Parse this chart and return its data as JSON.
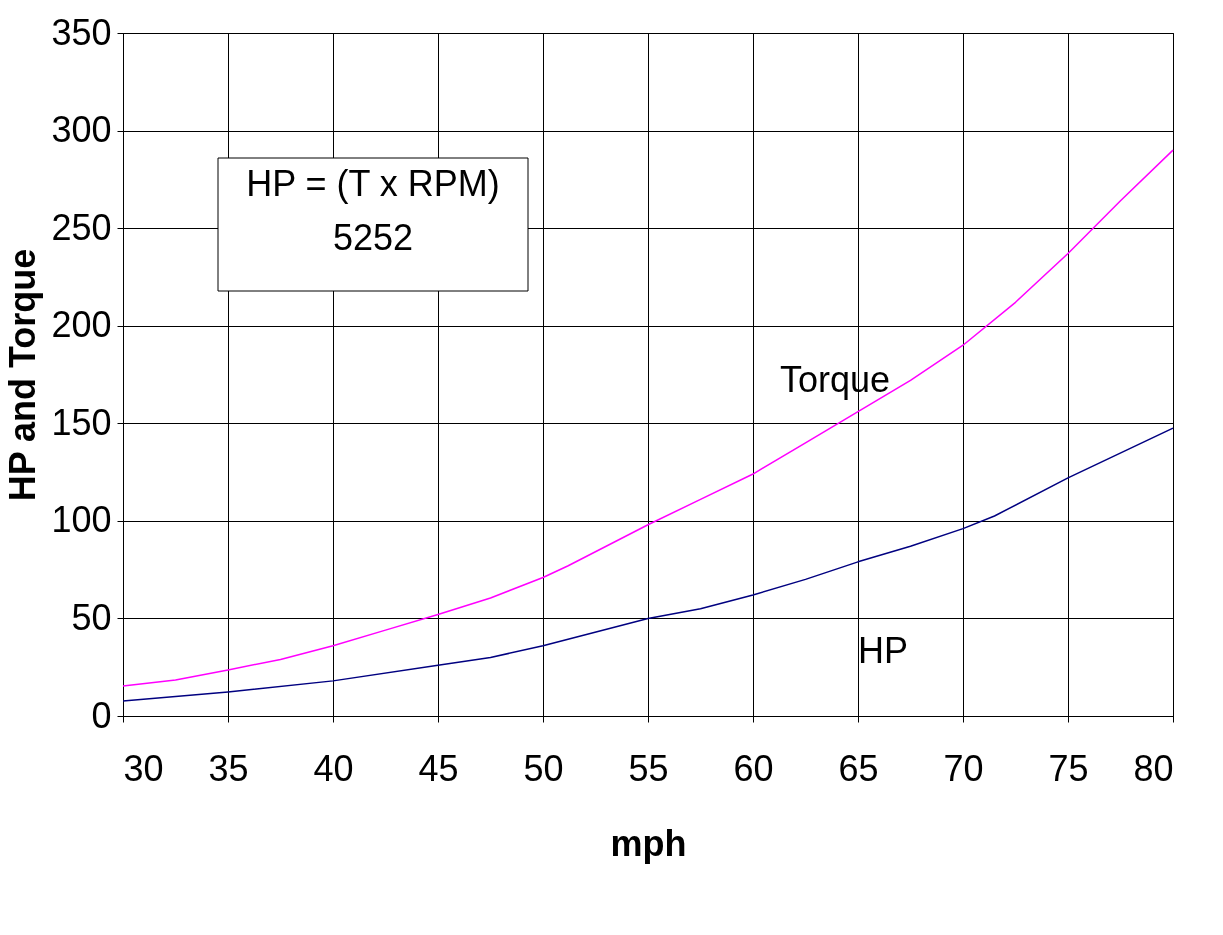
{
  "chart_data": {
    "type": "line",
    "xlabel": "mph",
    "ylabel": "HP and Torque",
    "x": [
      30,
      32.5,
      35,
      37.5,
      40,
      42.5,
      45,
      47.5,
      50,
      51.2,
      55,
      57.5,
      60,
      62.5,
      65,
      67.5,
      70,
      72.5,
      75,
      77.5,
      80
    ],
    "series": [
      {
        "name": "Torque",
        "color": "#ff00ff",
        "values": [
          15.4,
          18.5,
          23.6,
          29,
          36,
          44,
          52,
          60.5,
          71,
          77,
          98,
          111,
          124,
          140,
          156,
          172,
          190,
          212,
          237,
          264,
          290
        ]
      },
      {
        "name": "HP",
        "color": "#000080",
        "x": [
          30,
          35,
          40,
          45,
          47.5,
          50,
          55,
          57.5,
          60,
          62.5,
          65,
          67.5,
          70,
          71.5,
          75,
          80
        ],
        "values": [
          7.7,
          12.3,
          18,
          26,
          30,
          36,
          50,
          55,
          62,
          70,
          79,
          87,
          96,
          102.5,
          122,
          147.5
        ]
      }
    ],
    "xlim": [
      30,
      80
    ],
    "xticks": [
      30,
      35,
      40,
      45,
      50,
      55,
      60,
      65,
      70,
      75,
      80
    ],
    "ylim": [
      0,
      350
    ],
    "yticks": [
      0,
      50,
      100,
      150,
      200,
      250,
      300,
      350
    ],
    "grid": true,
    "legend": false,
    "marker": "none",
    "line_style": "solid",
    "annotations": [
      "HP = (T x RPM)\n5252"
    ]
  }
}
